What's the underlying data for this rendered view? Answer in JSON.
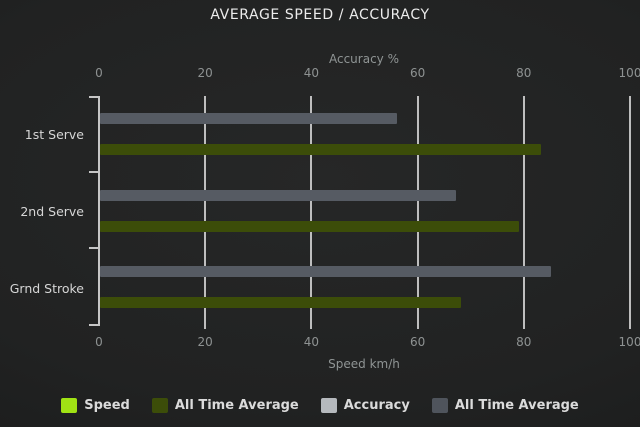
{
  "title": "AVERAGE SPEED / ACCURACY",
  "top_axis": {
    "title": "Accuracy %"
  },
  "bottom_axis": {
    "title": "Speed km/h"
  },
  "categories": [
    "1st Serve",
    "2nd Serve",
    "Grnd Stroke"
  ],
  "legend": [
    {
      "label": "Speed",
      "color": "#a0e214"
    },
    {
      "label": "All Time Average",
      "color": "#3c4d09"
    },
    {
      "label": "Accuracy",
      "color": "#b5b9bd"
    },
    {
      "label": "All Time Average",
      "color": "#4f545c"
    }
  ],
  "colors": {
    "background": "#212222",
    "grid": "#cfcfcf",
    "title_text": "#ececec",
    "muted_text": "#8e9292",
    "category_text": "#d6d6d6",
    "speed_bar": "#a0e214",
    "speed_avg_bar": "#3c4d09",
    "accuracy_bar": "#b5b9bd",
    "accuracy_avg_bar": "#565b63"
  },
  "chart_data": {
    "type": "bar",
    "orientation": "horizontal",
    "title": "AVERAGE SPEED / ACCURACY",
    "categories": [
      "1st Serve",
      "2nd Serve",
      "Grnd Stroke"
    ],
    "x_ticks": [
      0,
      20,
      40,
      60,
      80,
      100
    ],
    "xlim": [
      0,
      100
    ],
    "xlabel_top": "Accuracy %",
    "xlabel_bottom": "Speed km/h",
    "grid": true,
    "legend_position": "bottom",
    "series": [
      {
        "name": "Speed",
        "axis": "bottom",
        "color": "#a0e214",
        "values": [
          0,
          0,
          0
        ]
      },
      {
        "name": "All Time Average (Speed)",
        "axis": "bottom",
        "color": "#3c4d09",
        "values": [
          83,
          79,
          68
        ]
      },
      {
        "name": "Accuracy",
        "axis": "top",
        "color": "#b5b9bd",
        "values": [
          0,
          0,
          0
        ]
      },
      {
        "name": "All Time Average (Accuracy)",
        "axis": "top",
        "color": "#565b63",
        "values": [
          56,
          67,
          85
        ]
      }
    ]
  }
}
